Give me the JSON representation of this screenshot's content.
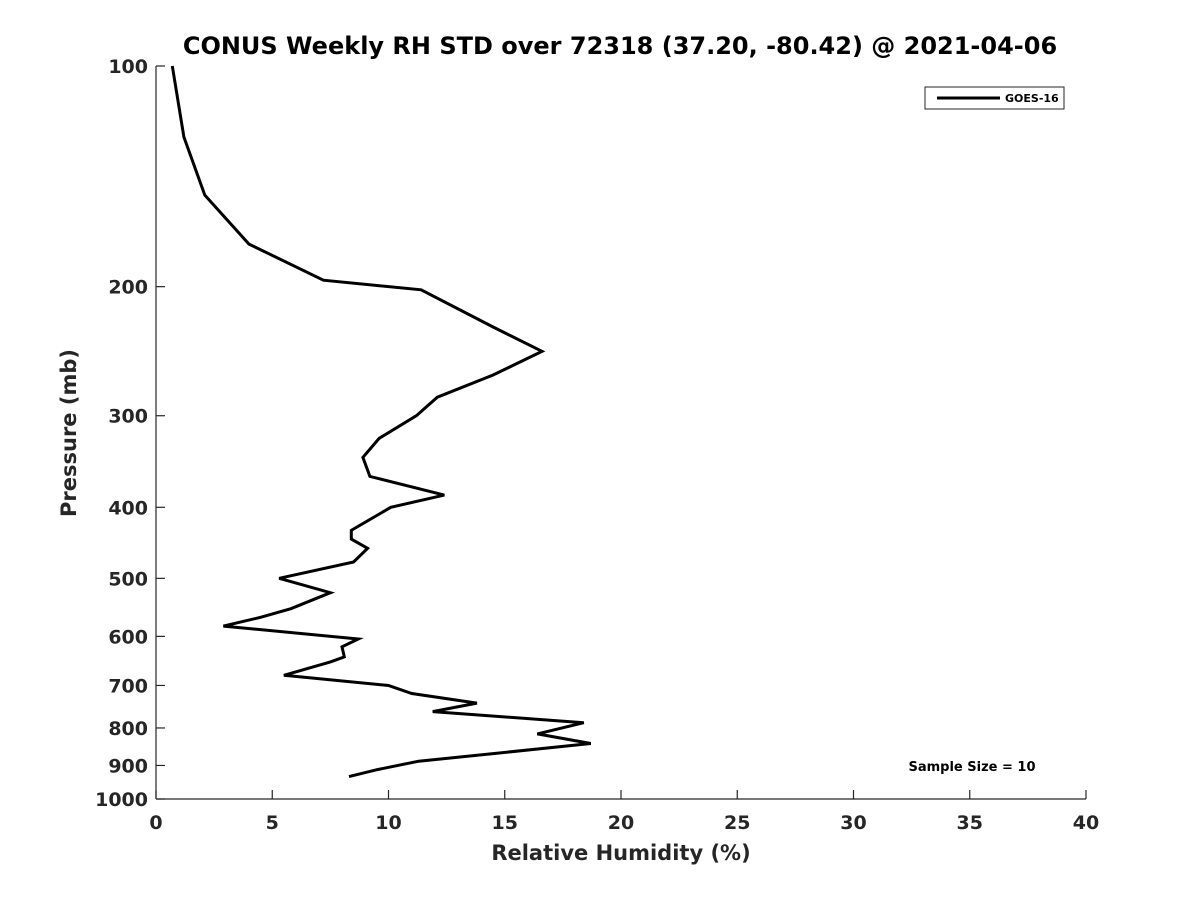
{
  "chart_data": {
    "type": "line",
    "title": "CONUS Weekly RH STD over 72318 (37.20, -80.42) @ 2021-04-06",
    "xlabel": "Relative Humidity (%)",
    "ylabel": "Pressure (mb)",
    "xlim": [
      0,
      40
    ],
    "ylim": [
      100,
      1000
    ],
    "y_scale": "log",
    "y_reversed": true,
    "x_ticks": [
      0,
      5,
      10,
      15,
      20,
      25,
      30,
      35,
      40
    ],
    "y_ticks": [
      100,
      200,
      300,
      400,
      500,
      600,
      700,
      800,
      900,
      1000
    ],
    "grid": false,
    "legend_position": "top-right",
    "annotation": "Sample Size = 10",
    "series": [
      {
        "name": "GOES-16",
        "color": "#000000",
        "points": [
          [
            0.7,
            100
          ],
          [
            1.2,
            125
          ],
          [
            2.1,
            150
          ],
          [
            4.0,
            175
          ],
          [
            7.2,
            196
          ],
          [
            11.4,
            202
          ],
          [
            14.5,
            227
          ],
          [
            16.6,
            245
          ],
          [
            14.5,
            264
          ],
          [
            12.1,
            283
          ],
          [
            11.2,
            300
          ],
          [
            9.6,
            322
          ],
          [
            8.9,
            342
          ],
          [
            9.2,
            363
          ],
          [
            12.4,
            385
          ],
          [
            10.1,
            400
          ],
          [
            8.4,
            430
          ],
          [
            8.4,
            442
          ],
          [
            9.1,
            455
          ],
          [
            8.5,
            475
          ],
          [
            5.3,
            500
          ],
          [
            7.5,
            523
          ],
          [
            5.8,
            550
          ],
          [
            4.5,
            565
          ],
          [
            2.9,
            581
          ],
          [
            8.7,
            605
          ],
          [
            8.0,
            620
          ],
          [
            8.1,
            640
          ],
          [
            7.5,
            650
          ],
          [
            5.5,
            678
          ],
          [
            10.0,
            700
          ],
          [
            11.0,
            718
          ],
          [
            13.8,
            740
          ],
          [
            11.9,
            760
          ],
          [
            18.4,
            787
          ],
          [
            16.4,
            815
          ],
          [
            18.7,
            840
          ],
          [
            14.5,
            867
          ],
          [
            11.3,
            888
          ],
          [
            9.5,
            912
          ],
          [
            8.3,
            932
          ]
        ]
      }
    ]
  }
}
